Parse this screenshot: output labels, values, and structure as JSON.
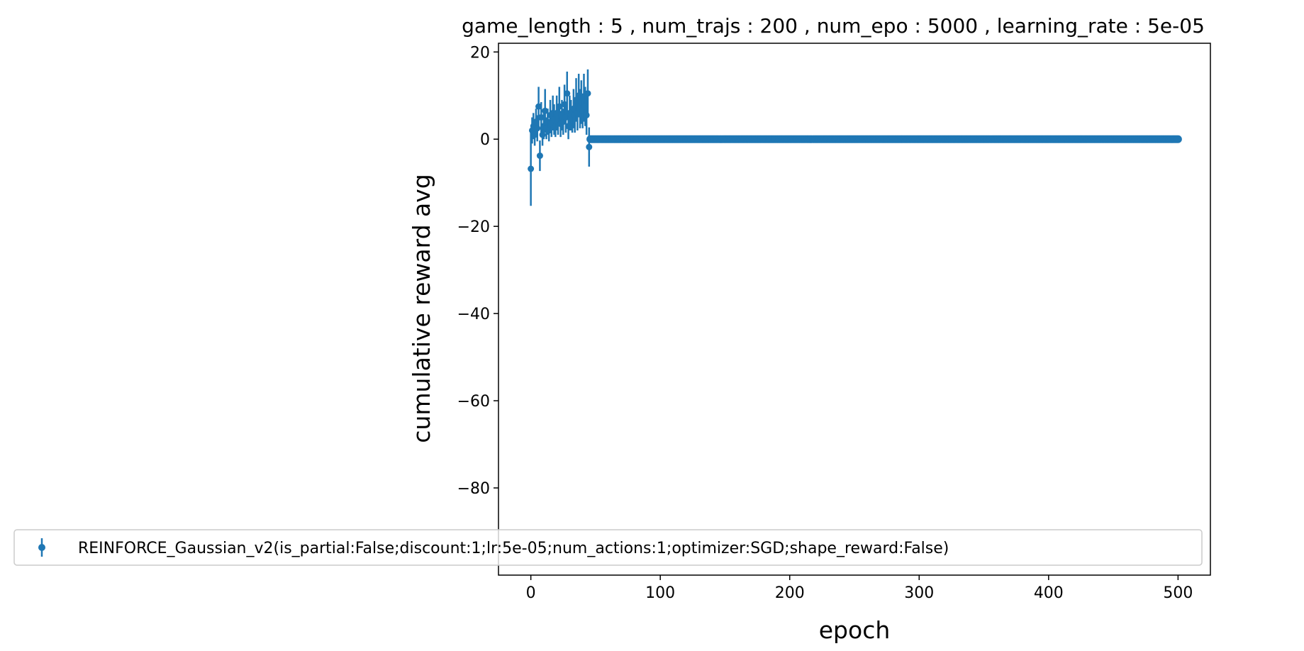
{
  "chart_data": {
    "type": "scatter",
    "title": "game_length : 5 , num_trajs : 200 , num_epo : 5000 , learning_rate : 5e-05",
    "xlabel": "epoch",
    "ylabel": "cumulative reward avg",
    "xlim": [
      -25,
      525
    ],
    "ylim": [
      -100,
      22
    ],
    "xticks": [
      0,
      100,
      200,
      300,
      400,
      500
    ],
    "xtick_labels": [
      "0",
      "100",
      "200",
      "300",
      "400",
      "500"
    ],
    "yticks": [
      20,
      0,
      -20,
      -40,
      -60,
      -80
    ],
    "ytick_labels": [
      "20",
      "0",
      "−20",
      "−40",
      "−60",
      "−80"
    ],
    "grid": false,
    "legend_position": "lower center",
    "color": "#1f77b4",
    "series": [
      {
        "name": "REINFORCE_Gaussian_v2(is_partial:False;discount:1;lr:5e-05;num_actions:1;optimizer:SGD;shape_reward:False)",
        "x": [
          0,
          1,
          2,
          3,
          4,
          5,
          6,
          7,
          8,
          9,
          10,
          11,
          12,
          13,
          14,
          15,
          16,
          17,
          18,
          19,
          20,
          21,
          22,
          23,
          24,
          25,
          26,
          27,
          28,
          29,
          30,
          31,
          32,
          33,
          34,
          35,
          36,
          37,
          38,
          39,
          40,
          41,
          42,
          43,
          44,
          45
        ],
        "y": [
          -6.8,
          2.0,
          3.0,
          1.0,
          4.0,
          2.5,
          7.5,
          -3.8,
          5.0,
          1.0,
          3.0,
          6.5,
          2.5,
          4.0,
          2.0,
          5.5,
          3.5,
          6.0,
          4.5,
          3.0,
          6.0,
          4.0,
          7.5,
          3.5,
          5.5,
          4.0,
          8.0,
          5.0,
          10.5,
          3.0,
          6.0,
          5.5,
          4.5,
          7.0,
          5.5,
          9.0,
          6.0,
          10.0,
          7.0,
          8.5,
          6.5,
          9.5,
          7.5,
          5.5,
          10.5,
          -1.8
        ],
        "err": [
          8.5,
          3.0,
          3.0,
          2.5,
          3.0,
          3.0,
          4.5,
          3.5,
          3.5,
          2.5,
          3.0,
          5.0,
          2.5,
          3.0,
          2.5,
          3.5,
          3.0,
          4.0,
          3.5,
          2.5,
          4.0,
          3.0,
          4.5,
          3.0,
          3.5,
          3.0,
          4.5,
          3.5,
          5.0,
          3.0,
          4.0,
          3.5,
          3.0,
          4.5,
          4.0,
          5.0,
          4.0,
          5.0,
          4.5,
          5.0,
          4.0,
          5.5,
          4.5,
          4.5,
          5.5,
          4.5
        ],
        "flat_from": 46,
        "flat_to": 500,
        "flat_value": 0.0
      }
    ]
  }
}
